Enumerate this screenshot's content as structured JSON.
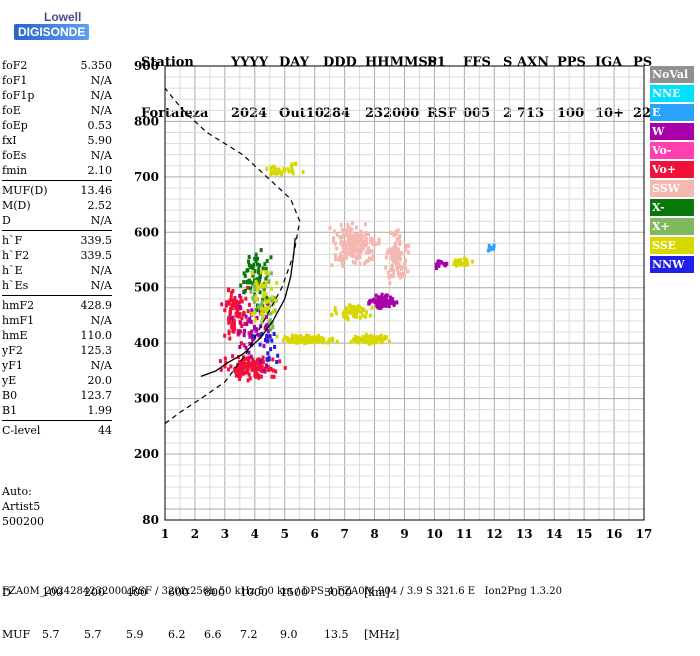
{
  "logo": {
    "line1": "Lowell",
    "line2": "DIGISONDE"
  },
  "header": {
    "row1": [
      "Station",
      "YYYY",
      "DAY",
      "DDD",
      "HHMMSS",
      "P1",
      "FFS",
      "S",
      "AXN",
      "PPS",
      "IGA",
      "PS"
    ],
    "row2": [
      "Fortaleza",
      "2024",
      "Out10",
      "284",
      "232000",
      "RSF",
      "005",
      "2",
      "713",
      "100",
      "10+",
      "22"
    ]
  },
  "params": {
    "group1": [
      {
        "k": "foF2",
        "v": "5.350"
      },
      {
        "k": "foF1",
        "v": "N/A"
      },
      {
        "k": "foF1p",
        "v": "N/A"
      },
      {
        "k": "foE",
        "v": "N/A"
      },
      {
        "k": "foEp",
        "v": "0.53"
      },
      {
        "k": "fxI",
        "v": "5.90"
      },
      {
        "k": "foEs",
        "v": "N/A"
      },
      {
        "k": "fmin",
        "v": "2.10"
      }
    ],
    "group2": [
      {
        "k": "MUF(D)",
        "v": "13.46"
      },
      {
        "k": "M(D)",
        "v": "2.52"
      },
      {
        "k": "D",
        "v": "N/A"
      }
    ],
    "group3": [
      {
        "k": "h`F",
        "v": "339.5"
      },
      {
        "k": "h`F2",
        "v": "339.5"
      },
      {
        "k": "h`E",
        "v": "N/A"
      },
      {
        "k": "h`Es",
        "v": "N/A"
      }
    ],
    "group4": [
      {
        "k": "hmF2",
        "v": "428.9"
      },
      {
        "k": "hmF1",
        "v": "N/A"
      },
      {
        "k": "hmE",
        "v": "110.0"
      },
      {
        "k": "yF2",
        "v": "125.3"
      },
      {
        "k": "yF1",
        "v": "N/A"
      },
      {
        "k": "yE",
        "v": "20.0"
      },
      {
        "k": "B0",
        "v": "123.7"
      },
      {
        "k": "B1",
        "v": "1.99"
      }
    ],
    "group5": [
      {
        "k": "C-level",
        "v": "44"
      }
    ]
  },
  "auto": {
    "line1": "Auto:",
    "line2": "Artist5",
    "line3": "500200"
  },
  "legend": [
    {
      "label": "NoVal",
      "color": "#909090"
    },
    {
      "label": "NNE",
      "color": "#00e0ff"
    },
    {
      "label": "E",
      "color": "#2aa0ff"
    },
    {
      "label": "W",
      "color": "#a800a8"
    },
    {
      "label": "Vo-",
      "color": "#ff40b0"
    },
    {
      "label": "Vo+",
      "color": "#f0103a"
    },
    {
      "label": "SSW",
      "color": "#f4b8b0"
    },
    {
      "label": "X-",
      "color": "#087808"
    },
    {
      "label": "X+",
      "color": "#80b860"
    },
    {
      "label": "SSE",
      "color": "#d8d800"
    },
    {
      "label": "NNW",
      "color": "#2020e8"
    }
  ],
  "bottom": {
    "d_label": "D",
    "d_values": [
      "100",
      "200",
      "400",
      "600",
      "800",
      "1000",
      "1500",
      "3000"
    ],
    "d_unit": "[km]",
    "muf_label": "MUF",
    "muf_values": [
      "5.7",
      "5.7",
      "5.9",
      "6.2",
      "6.6",
      "7.2",
      "9.0",
      "13.5"
    ],
    "muf_unit": "[MHz]"
  },
  "footer": "FZA0M_2024284232000.RSF / 320fx256h 50 kHz 5.0 km / DPS-4 FZA0M 904 / 3.9 S 321.6 E   Ion2Png 1.3.20",
  "chart_data": {
    "type": "scatter",
    "xlim": [
      1,
      17
    ],
    "ylim": [
      80,
      900
    ],
    "x_ticks": [
      "1",
      "2",
      "3",
      "4",
      "5",
      "6",
      "7",
      "8",
      "9",
      "10",
      "11",
      "12",
      "13",
      "14",
      "15",
      "16",
      "17"
    ],
    "y_ticks": [
      "80",
      "200",
      "300",
      "400",
      "500",
      "600",
      "700",
      "800",
      "900"
    ],
    "grid": true,
    "clusters": [
      {
        "color": "#f0103a",
        "cx": 3.8,
        "cy": 360,
        "rx": 1.3,
        "ry": 25,
        "n": 140
      },
      {
        "color": "#f0103a",
        "cx": 3.3,
        "cy": 460,
        "rx": 0.6,
        "ry": 70,
        "n": 90
      },
      {
        "color": "#087808",
        "cx": 4.0,
        "cy": 520,
        "rx": 0.6,
        "ry": 80,
        "n": 70
      },
      {
        "color": "#80b860",
        "cx": 4.3,
        "cy": 470,
        "rx": 0.6,
        "ry": 80,
        "n": 50
      },
      {
        "color": "#a800a8",
        "cx": 3.9,
        "cy": 420,
        "rx": 0.9,
        "ry": 80,
        "n": 50
      },
      {
        "color": "#d8d800",
        "cx": 4.2,
        "cy": 480,
        "rx": 0.7,
        "ry": 70,
        "n": 40
      },
      {
        "color": "#d8d800",
        "cx": 5.7,
        "cy": 410,
        "rx": 1.2,
        "ry": 10,
        "n": 120
      },
      {
        "color": "#d8d800",
        "cx": 7.8,
        "cy": 410,
        "rx": 0.8,
        "ry": 10,
        "n": 90
      },
      {
        "color": "#a800a8",
        "cx": 8.2,
        "cy": 480,
        "rx": 0.6,
        "ry": 15,
        "n": 90
      },
      {
        "color": "#d8d800",
        "cx": 7.2,
        "cy": 460,
        "rx": 0.8,
        "ry": 20,
        "n": 60
      },
      {
        "color": "#f4b8b0",
        "cx": 7.3,
        "cy": 580,
        "rx": 1.0,
        "ry": 50,
        "n": 200
      },
      {
        "color": "#f4b8b0",
        "cx": 8.7,
        "cy": 560,
        "rx": 0.5,
        "ry": 60,
        "n": 110
      },
      {
        "color": "#d8d800",
        "cx": 4.8,
        "cy": 720,
        "rx": 0.9,
        "ry": 20,
        "n": 30
      },
      {
        "color": "#d8d800",
        "cx": 10.8,
        "cy": 550,
        "rx": 0.5,
        "ry": 10,
        "n": 25
      },
      {
        "color": "#a800a8",
        "cx": 10.2,
        "cy": 545,
        "rx": 0.4,
        "ry": 12,
        "n": 18
      },
      {
        "color": "#2aa0ff",
        "cx": 11.9,
        "cy": 575,
        "rx": 0.2,
        "ry": 8,
        "n": 10
      },
      {
        "color": "#2020e8",
        "cx": 4.4,
        "cy": 400,
        "rx": 0.6,
        "ry": 60,
        "n": 18
      }
    ],
    "profile_solid": [
      [
        2.2,
        340
      ],
      [
        2.7,
        350
      ],
      [
        3.1,
        365
      ],
      [
        3.6,
        380
      ],
      [
        4.2,
        410
      ],
      [
        4.6,
        440
      ],
      [
        5.0,
        480
      ],
      [
        5.2,
        520
      ],
      [
        5.3,
        560
      ],
      [
        5.35,
        590
      ]
    ],
    "profile_dashed": [
      [
        1.0,
        255
      ],
      [
        1.5,
        275
      ],
      [
        2.2,
        300
      ],
      [
        3.0,
        330
      ],
      [
        3.7,
        380
      ],
      [
        4.3,
        440
      ],
      [
        4.9,
        500
      ],
      [
        5.3,
        560
      ],
      [
        5.5,
        620
      ],
      [
        5.2,
        660
      ],
      [
        4.4,
        700
      ],
      [
        3.6,
        740
      ],
      [
        2.4,
        780
      ],
      [
        1.6,
        820
      ],
      [
        1.0,
        860
      ]
    ]
  }
}
